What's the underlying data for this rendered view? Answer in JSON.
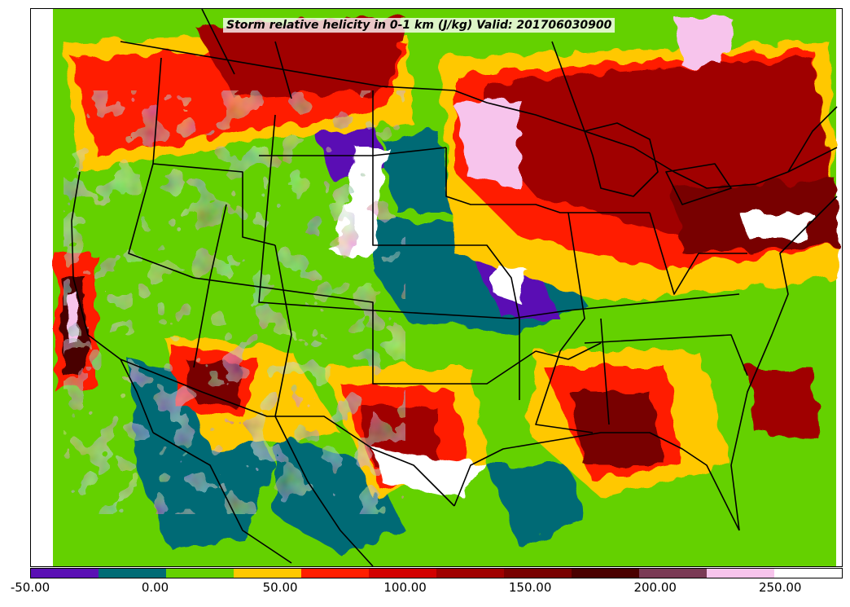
{
  "title": "Storm relative helicity in 0-1 km (J/kg) Valid: 201706030900",
  "colorbar": {
    "min": -50,
    "max": 275,
    "step": 25,
    "colors": [
      "#5a10b4",
      "#006b75",
      "#64d100",
      "#ffc800",
      "#ff1e00",
      "#d20000",
      "#a00000",
      "#780000",
      "#4a0000",
      "#7a3a55",
      "#f7c4ec",
      "#ffffff"
    ],
    "ticks": [
      {
        "value": -50,
        "label": "-50.00"
      },
      {
        "value": 0,
        "label": "0.00"
      },
      {
        "value": 50,
        "label": "50.00"
      },
      {
        "value": 100,
        "label": "100.00"
      },
      {
        "value": 150,
        "label": "150.00"
      },
      {
        "value": 200,
        "label": "200.00"
      },
      {
        "value": 250,
        "label": "250.00"
      }
    ]
  }
}
